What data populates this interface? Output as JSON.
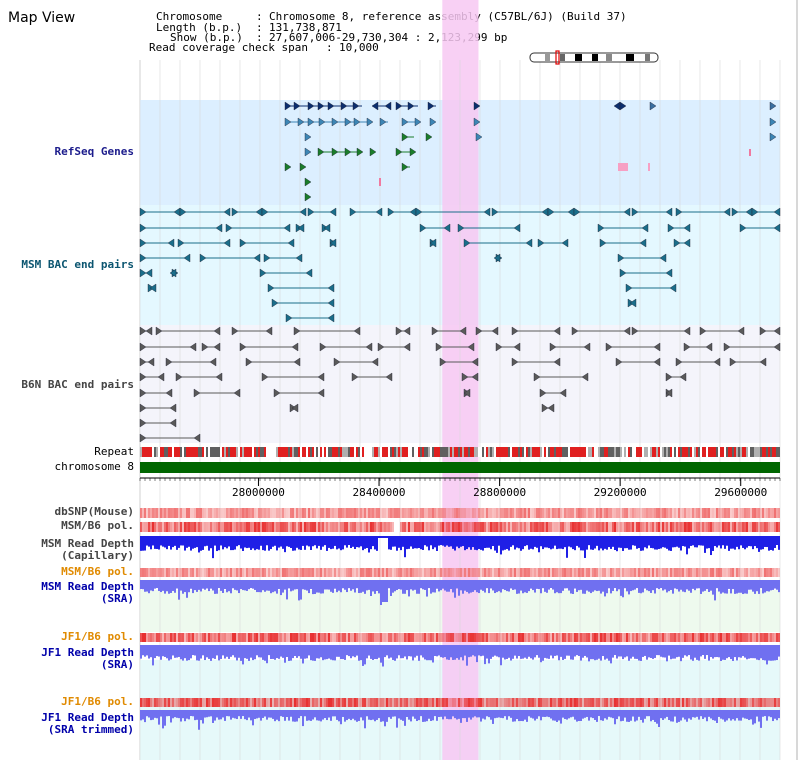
{
  "page": {
    "title": "Map View",
    "info": {
      "chromosome": {
        "key": "Chromosome",
        "value": "Chromosome 8, reference assembly (C57BL/6J) (Build 37)"
      },
      "length": {
        "key": "Length (b.p.)",
        "value": "131,738,871"
      },
      "show": {
        "key": "Show (b.p.)",
        "value": "27,607,006-29,730,304 : 2,123,299 bp"
      },
      "coverage": {
        "key": "Read coverage check span",
        "value": "10,000"
      }
    }
  },
  "tracks": {
    "refseq": "RefSeq Genes",
    "msm_bac": "MSM BAC end pairs",
    "b6n_bac": "B6N BAC end pairs",
    "repeat": "Repeat",
    "chromosome": "chromosome 8",
    "dbsnp": "dbSNP(Mouse)",
    "msm_b6_pol": "MSM/B6 pol.",
    "msm_depth_cap": [
      "MSM Read Depth",
      "(Capillary)"
    ],
    "msm_b6_pol2": "MSM/B6 pol.",
    "msm_depth_sra": [
      "MSM Read Depth",
      "(SRA)"
    ],
    "jf1_b6_pol": "JF1/B6 pol.",
    "jf1_depth_sra": [
      "JF1 Read Depth",
      "(SRA)"
    ],
    "jf1_b6_pol2": "JF1/B6 pol.",
    "jf1_depth_trim": [
      "JF1 Read Depth",
      "(SRA trimmed)"
    ]
  },
  "axis": {
    "start": 27607006,
    "end": 29730304,
    "ticks": [
      "28000000",
      "28400000",
      "28800000",
      "29200000",
      "29600000"
    ]
  },
  "highlight": {
    "start": 28610000,
    "end": 28730000,
    "color": "#f7c8f2"
  },
  "colors": {
    "refseq_bg": "#dcefff",
    "bac_bg": "#e4f8ff",
    "b6n_bg": "#f4f4fb",
    "chrom": "#006600",
    "snp": "#f07070",
    "pol": "#e83030",
    "depth_cap": "#1f1fe6",
    "depth_sra": "#7070f0",
    "label_navy": "#1c1c8c",
    "label_teal": "#0b5570",
    "label_grey": "#444444",
    "label_orange": "#e08a00",
    "label_blue": "#0000aa"
  }
}
